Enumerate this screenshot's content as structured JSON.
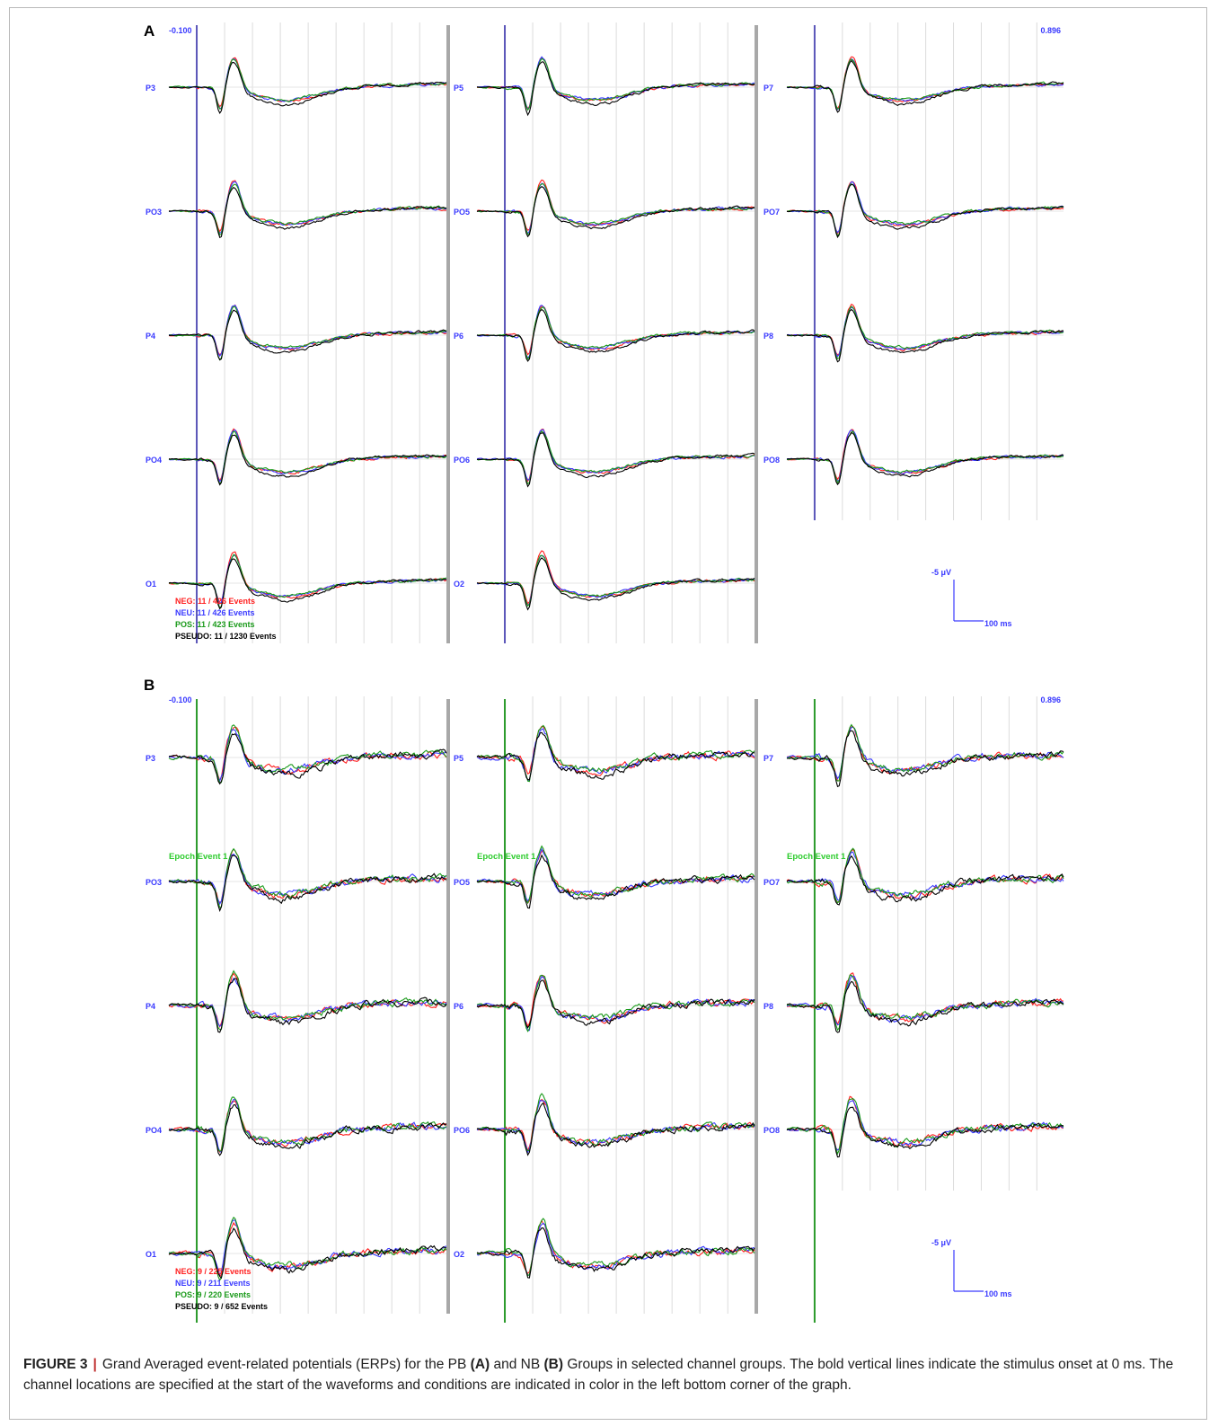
{
  "figure": {
    "panels": [
      {
        "label": "A",
        "time_start_label": "-0.100",
        "time_end_label": "0.896",
        "onset_line_color": "#5a55b8",
        "epoch_event_label": "",
        "columns": [
          {
            "channels": [
              "P3",
              "PO3",
              "P4",
              "PO4",
              "O1"
            ]
          },
          {
            "channels": [
              "P5",
              "PO5",
              "P6",
              "PO6",
              "O2"
            ]
          },
          {
            "channels": [
              "P7",
              "PO7",
              "P8",
              "PO8"
            ]
          }
        ],
        "legend": [
          {
            "condition": "NEG",
            "text": "NEG: 11 / 426 Events",
            "color": "#ff2020"
          },
          {
            "condition": "NEU",
            "text": "NEU: 11 / 426 Events",
            "color": "#3a3aff"
          },
          {
            "condition": "POS",
            "text": "POS: 11 / 423 Events",
            "color": "#1a9a1a"
          },
          {
            "condition": "PSEUDO",
            "text": "PSEUDO: 11 / 1230 Events",
            "color": "#000000"
          }
        ],
        "scale_bar": {
          "amplitude_label": "-5 μV",
          "time_label": "100 ms"
        }
      },
      {
        "label": "B",
        "time_start_label": "-0.100",
        "time_end_label": "0.896",
        "onset_line_color": "#2a9a2a",
        "epoch_event_label": "Epoch Event 1",
        "columns": [
          {
            "channels": [
              "P3",
              "PO3",
              "P4",
              "PO4",
              "O1"
            ]
          },
          {
            "channels": [
              "P5",
              "PO5",
              "P6",
              "PO6",
              "O2"
            ]
          },
          {
            "channels": [
              "P7",
              "PO7",
              "P8",
              "PO8"
            ]
          }
        ],
        "legend": [
          {
            "condition": "NEG",
            "text": "NEG: 9 / 225 Events",
            "color": "#ff2020"
          },
          {
            "condition": "NEU",
            "text": "NEU: 9 / 211 Events",
            "color": "#3a3aff"
          },
          {
            "condition": "POS",
            "text": "POS: 9 / 220 Events",
            "color": "#1a9a1a"
          },
          {
            "condition": "PSEUDO",
            "text": "PSEUDO: 9 / 652 Events",
            "color": "#000000"
          }
        ],
        "scale_bar": {
          "amplitude_label": "-5 μV",
          "time_label": "100 ms"
        }
      }
    ]
  },
  "chart_data": {
    "type": "line",
    "x_unit": "s",
    "xlim": [
      -0.1,
      0.896
    ],
    "stimulus_onset": 0,
    "gridline_interval_ms": 100,
    "y_axis_inverted": true,
    "series_colors": {
      "NEG": "#ff2020",
      "NEU": "#3a3aff",
      "POS": "#1a9a1a",
      "PSEUDO": "#000000"
    },
    "x": [
      -0.1,
      0.0,
      0.05,
      0.1,
      0.15,
      0.2,
      0.25,
      0.3,
      0.35,
      0.4,
      0.5,
      0.6,
      0.7,
      0.8,
      0.896
    ]
  },
  "caption": {
    "label": "FIGURE 3",
    "separator": "|",
    "seg1": "Grand Averaged event-related potentials (ERPs) for the PB ",
    "ref_a": "(A)",
    "seg2": " and NB ",
    "ref_b": "(B)",
    "seg3": " Groups in selected channel groups. The bold vertical lines indicate the stimulus onset at 0 ms. The channel locations are specified at the start of the waveforms and conditions are indicated in color in the left bottom corner of the graph."
  }
}
